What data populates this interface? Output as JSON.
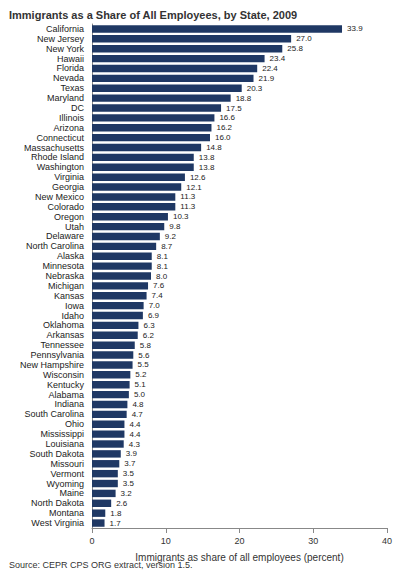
{
  "chart_data": {
    "type": "bar",
    "orientation": "horizontal",
    "title": "Immigrants as a Share of All Employees, by State, 2009",
    "x_label": "Immigrants as share of all employees (percent)",
    "annotations": [
      "Source: CEPR CPS ORG extract, version 1.5."
    ],
    "categories": [
      "California",
      "New Jersey",
      "New York",
      "Hawaii",
      "Florida",
      "Nevada",
      "Texas",
      "Maryland",
      "DC",
      "Illinois",
      "Arizona",
      "Connecticut",
      "Massachusetts",
      "Rhode Island",
      "Washington",
      "Virginia",
      "Georgia",
      "New Mexico",
      "Colorado",
      "Oregon",
      "Utah",
      "Delaware",
      "North Carolina",
      "Alaska",
      "Minnesota",
      "Nebraska",
      "Michigan",
      "Kansas",
      "Iowa",
      "Idaho",
      "Oklahoma",
      "Arkansas",
      "Tennessee",
      "Pennsylvania",
      "New Hampshire",
      "Wisconsin",
      "Kentucky",
      "Alabama",
      "Indiana",
      "South Carolina",
      "Ohio",
      "Mississippi",
      "Louisiana",
      "South Dakota",
      "Missouri",
      "Vermont",
      "Wyoming",
      "Maine",
      "North Dakota",
      "Montana",
      "West Virginia"
    ],
    "values": [
      33.9,
      27.0,
      25.8,
      23.4,
      22.4,
      21.9,
      20.3,
      18.8,
      17.5,
      16.6,
      16.2,
      16.0,
      14.8,
      13.8,
      13.8,
      12.6,
      12.1,
      11.3,
      11.3,
      10.3,
      9.8,
      9.2,
      8.7,
      8.1,
      8.1,
      8.0,
      7.6,
      7.4,
      7.0,
      6.9,
      6.3,
      6.2,
      5.8,
      5.6,
      5.5,
      5.2,
      5.1,
      5.0,
      4.8,
      4.7,
      4.4,
      4.4,
      4.3,
      3.9,
      3.7,
      3.5,
      3.5,
      3.2,
      2.6,
      1.8,
      1.7
    ],
    "value_labels": [
      "33.9",
      "27.0",
      "25.8",
      "23.4",
      "22.4",
      "21.9",
      "20.3",
      "18.8",
      "17.5",
      "16.6",
      "16.2",
      "16.0",
      "14.8",
      "13.8",
      "13.8",
      "12.6",
      "12.1",
      "11.3",
      "11.3",
      "10.3",
      "9.8",
      "9.2",
      "8.7",
      "8.1",
      "8.1",
      "8.0",
      "7.6",
      "7.4",
      "7.0",
      "6.9",
      "6.3",
      "6.2",
      "5.8",
      "5.6",
      "5.5",
      "5.2",
      "5.1",
      "5.0",
      "4.8",
      "4.7",
      "4.4",
      "4.4",
      "4.3",
      "3.9",
      "3.7",
      "3.5",
      "3.5",
      "3.2",
      "2.6",
      "1.8",
      "1.7"
    ],
    "color": "#1f3864",
    "xlim": [
      0,
      40
    ],
    "xticks": [
      0,
      10,
      20,
      30,
      40
    ],
    "grid": false,
    "data_labels": true
  }
}
